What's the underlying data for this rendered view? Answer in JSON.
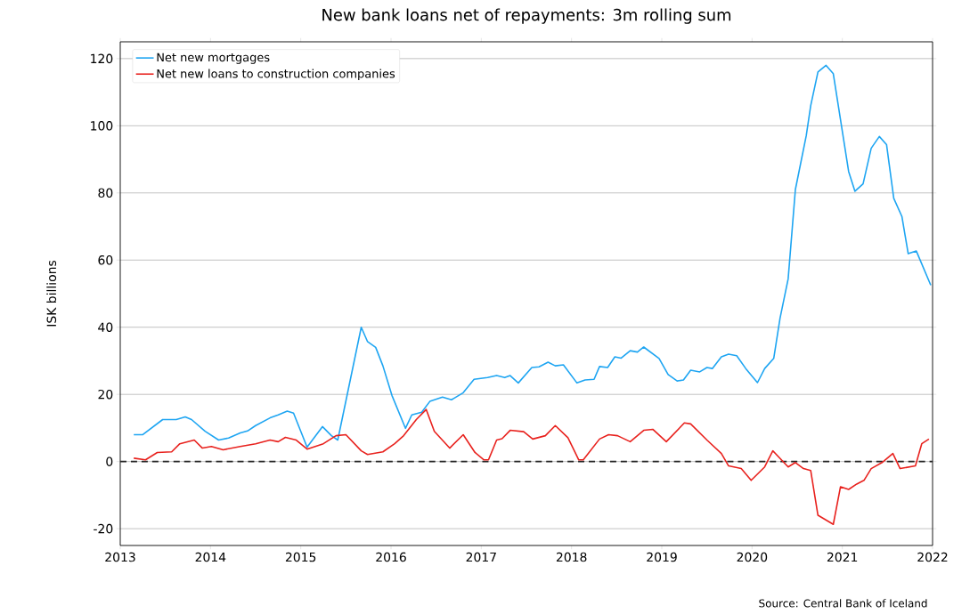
{
  "chart_data": {
    "type": "line",
    "title": "New bank loans net of repayments: 3m rolling sum",
    "ylabel": "ISK billions",
    "xlim": [
      2013,
      2022
    ],
    "xticks": [
      2013,
      2014,
      2015,
      2016,
      2017,
      2018,
      2019,
      2020,
      2021,
      2022
    ],
    "ylim": [
      -25,
      125
    ],
    "yticks": [
      -20,
      0,
      20,
      40,
      60,
      80,
      100,
      120
    ],
    "grid": "y",
    "legend": "top left",
    "marker": "none",
    "line_style": "solid",
    "ref_lines": [
      {
        "axis": "y",
        "value": 0,
        "color": "#222222",
        "line_style": "dashed"
      }
    ],
    "annotations": [
      "Source: Central Bank of Iceland"
    ],
    "series": [
      {
        "name": "Net new mortgages",
        "color": "#1ea5f2",
        "x": [
          2013.15,
          2013.25,
          2013.47,
          2013.62,
          2013.72,
          2013.79,
          2013.94,
          2014.09,
          2014.2,
          2014.33,
          2014.41,
          2014.5,
          2014.66,
          2014.75,
          2014.85,
          2014.92,
          2015.07,
          2015.24,
          2015.34,
          2015.41,
          2015.67,
          2015.74,
          2015.83,
          2015.91,
          2016.01,
          2016.16,
          2016.23,
          2016.34,
          2016.43,
          2016.57,
          2016.67,
          2016.8,
          2016.92,
          2017.07,
          2017.17,
          2017.26,
          2017.32,
          2017.41,
          2017.56,
          2017.64,
          2017.74,
          2017.82,
          2017.91,
          2018.06,
          2018.15,
          2018.25,
          2018.31,
          2018.4,
          2018.48,
          2018.55,
          2018.65,
          2018.73,
          2018.8,
          2018.97,
          2019.07,
          2019.17,
          2019.24,
          2019.32,
          2019.42,
          2019.5,
          2019.56,
          2019.66,
          2019.74,
          2019.83,
          2019.93,
          2020.06,
          2020.14,
          2020.24,
          2020.31,
          2020.4,
          2020.48,
          2020.6,
          2020.65,
          2020.73,
          2020.82,
          2020.9,
          2021.07,
          2021.14,
          2021.23,
          2021.32,
          2021.41,
          2021.49,
          2021.57,
          2021.66,
          2021.73,
          2021.82,
          2021.98
        ],
        "values": [
          8,
          8,
          12.5,
          12.5,
          13.3,
          12.5,
          9,
          6.4,
          7,
          8.5,
          9.1,
          10.7,
          13,
          13.9,
          15,
          14.4,
          4.3,
          10.4,
          7.7,
          6.4,
          40,
          35.7,
          34,
          28.5,
          19.7,
          9.9,
          13.9,
          14.7,
          17.9,
          19.2,
          18.4,
          20.5,
          24.5,
          25,
          25.6,
          25,
          25.6,
          23.4,
          28,
          28.2,
          29.6,
          28.5,
          28.8,
          23.4,
          24.3,
          24.5,
          28.3,
          28,
          31.2,
          30.8,
          33,
          32.6,
          34.1,
          30.7,
          25.9,
          24,
          24.3,
          27.2,
          26.7,
          28,
          27.7,
          31.2,
          32,
          31.5,
          27.7,
          23.5,
          27.7,
          30.7,
          42.7,
          54.4,
          81,
          97,
          106,
          116,
          118,
          115.5,
          86.4,
          80.5,
          82.7,
          93.3,
          96.8,
          94.4,
          78.4,
          73,
          61.9,
          62.7,
          52.5
        ]
      },
      {
        "name": "Net new loans to construction companies",
        "color": "#e8211d",
        "x": [
          2013.15,
          2013.28,
          2013.41,
          2013.57,
          2013.66,
          2013.82,
          2013.91,
          2014.01,
          2014.14,
          2014.33,
          2014.5,
          2014.66,
          2014.75,
          2014.83,
          2014.95,
          2015.07,
          2015.25,
          2015.39,
          2015.5,
          2015.67,
          2015.74,
          2015.91,
          2016.04,
          2016.14,
          2016.28,
          2016.39,
          2016.48,
          2016.65,
          2016.8,
          2016.93,
          2017.03,
          2017.08,
          2017.17,
          2017.23,
          2017.32,
          2017.47,
          2017.57,
          2017.71,
          2017.82,
          2017.96,
          2018.08,
          2018.13,
          2018.31,
          2018.41,
          2018.51,
          2018.65,
          2018.8,
          2018.9,
          2019.05,
          2019.25,
          2019.32,
          2019.5,
          2019.66,
          2019.74,
          2019.88,
          2019.99,
          2020.14,
          2020.23,
          2020.4,
          2020.48,
          2020.57,
          2020.65,
          2020.73,
          2020.9,
          2020.98,
          2021.07,
          2021.16,
          2021.24,
          2021.32,
          2021.44,
          2021.56,
          2021.64,
          2021.81,
          2021.88,
          2021.96
        ],
        "values": [
          1,
          0.5,
          2.7,
          2.9,
          5.3,
          6.4,
          4,
          4.5,
          3.5,
          4.5,
          5.3,
          6.4,
          5.9,
          7.2,
          6.4,
          3.7,
          5.3,
          7.7,
          8,
          3.2,
          2.1,
          2.9,
          5.3,
          7.7,
          12.5,
          15.5,
          9,
          4,
          8,
          2.7,
          0.5,
          0.5,
          6.4,
          6.8,
          9.3,
          8.9,
          6.7,
          7.7,
          10.7,
          7.1,
          0.5,
          0.5,
          6.7,
          8,
          7.7,
          5.9,
          9.3,
          9.6,
          5.9,
          11.5,
          11.2,
          6.4,
          2.4,
          -1.3,
          -2.1,
          -5.6,
          -1.6,
          3.2,
          -1.6,
          -0.3,
          -2.1,
          -2.7,
          -16,
          -18.7,
          -7.5,
          -8.3,
          -6.7,
          -5.6,
          -2.1,
          -0.3,
          2.4,
          -2.1,
          -1.3,
          5.3,
          6.7
        ]
      }
    ]
  }
}
